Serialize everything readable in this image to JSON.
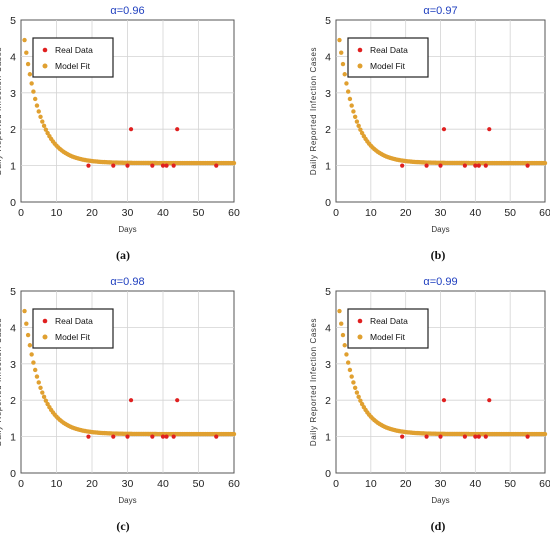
{
  "chart_data": [
    {
      "type": "scatter",
      "title": "α=0.96",
      "caption": "(a)",
      "xlabel": "Days",
      "ylabel": "Daily Reported Infection Cases",
      "xlim": [
        0,
        60
      ],
      "ylim": [
        0,
        5
      ],
      "xticks": [
        0,
        10,
        20,
        30,
        40,
        50,
        60
      ],
      "yticks": [
        0,
        1,
        2,
        3,
        4,
        5
      ],
      "grid": true,
      "legend_position": "top-left",
      "series": [
        {
          "name": "Real Data",
          "color": "#e02020",
          "x": [
            19,
            26,
            30,
            31,
            37,
            40,
            41,
            43,
            44,
            55
          ],
          "y": [
            1,
            1,
            1,
            2,
            1,
            1,
            1,
            1,
            2,
            1
          ]
        },
        {
          "name": "Model Fit",
          "color": "#e0a030",
          "model": {
            "start": 4.45,
            "asymptote": 1.07,
            "decay_days": 4.6,
            "x_start": 1,
            "x_end": 60
          }
        }
      ]
    },
    {
      "type": "scatter",
      "title": "α=0.97",
      "caption": "(b)",
      "xlabel": "Days",
      "ylabel": "Daily Reported Infection Cases",
      "xlim": [
        0,
        60
      ],
      "ylim": [
        0,
        5
      ],
      "xticks": [
        0,
        10,
        20,
        30,
        40,
        50,
        60
      ],
      "yticks": [
        0,
        1,
        2,
        3,
        4,
        5
      ],
      "grid": true,
      "legend_position": "top-left",
      "series": [
        {
          "name": "Real Data",
          "color": "#e02020",
          "x": [
            19,
            26,
            30,
            31,
            37,
            40,
            41,
            43,
            44,
            55
          ],
          "y": [
            1,
            1,
            1,
            2,
            1,
            1,
            1,
            1,
            2,
            1
          ]
        },
        {
          "name": "Model Fit",
          "color": "#e0a030",
          "model": {
            "start": 4.45,
            "asymptote": 1.07,
            "decay_days": 4.6,
            "x_start": 1,
            "x_end": 60
          }
        }
      ]
    },
    {
      "type": "scatter",
      "title": "α=0.98",
      "caption": "(c)",
      "xlabel": "Days",
      "ylabel": "Daily Reported Infection Cases",
      "xlim": [
        0,
        60
      ],
      "ylim": [
        0,
        5
      ],
      "xticks": [
        0,
        10,
        20,
        30,
        40,
        50,
        60
      ],
      "yticks": [
        0,
        1,
        2,
        3,
        4,
        5
      ],
      "grid": true,
      "legend_position": "top-left",
      "series": [
        {
          "name": "Real Data",
          "color": "#e02020",
          "x": [
            19,
            26,
            30,
            31,
            37,
            40,
            41,
            43,
            44,
            55
          ],
          "y": [
            1,
            1,
            1,
            2,
            1,
            1,
            1,
            1,
            2,
            1
          ]
        },
        {
          "name": "Model Fit",
          "color": "#e0a030",
          "model": {
            "start": 4.45,
            "asymptote": 1.07,
            "decay_days": 4.6,
            "x_start": 1,
            "x_end": 60
          }
        }
      ]
    },
    {
      "type": "scatter",
      "title": "α=0.99",
      "caption": "(d)",
      "xlabel": "Days",
      "ylabel": "Daily Reported Infection Cases",
      "xlim": [
        0,
        60
      ],
      "ylim": [
        0,
        5
      ],
      "xticks": [
        0,
        10,
        20,
        30,
        40,
        50,
        60
      ],
      "yticks": [
        0,
        1,
        2,
        3,
        4,
        5
      ],
      "grid": true,
      "legend_position": "top-left",
      "series": [
        {
          "name": "Real Data",
          "color": "#e02020",
          "x": [
            19,
            26,
            30,
            31,
            37,
            40,
            41,
            43,
            44,
            55
          ],
          "y": [
            1,
            1,
            1,
            2,
            1,
            1,
            1,
            1,
            2,
            1
          ]
        },
        {
          "name": "Model Fit",
          "color": "#e0a030",
          "model": {
            "start": 4.45,
            "asymptote": 1.07,
            "decay_days": 4.6,
            "x_start": 1,
            "x_end": 60
          }
        }
      ]
    }
  ]
}
